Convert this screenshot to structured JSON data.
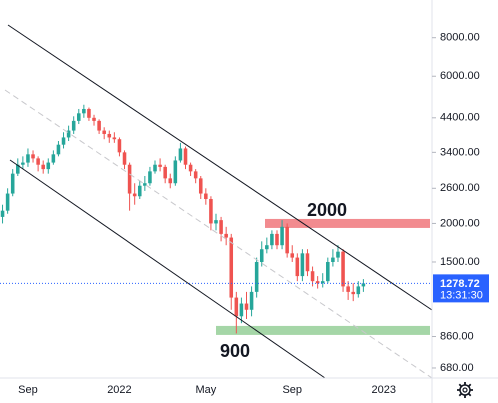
{
  "chart_data": {
    "type": "candlestick",
    "categories": [
      null,
      null,
      null,
      null,
      null,
      "Sep",
      null,
      null,
      null,
      null,
      null,
      null,
      null,
      null,
      null,
      null,
      null,
      null,
      null,
      null,
      null,
      null,
      null,
      "2022",
      null,
      null,
      null,
      null,
      null,
      null,
      null,
      null,
      null,
      null,
      null,
      null,
      null,
      null,
      null,
      null,
      "May",
      null,
      null,
      null,
      null,
      null,
      null,
      null,
      null,
      null,
      null,
      null,
      null,
      null,
      null,
      null,
      null,
      "Sep",
      null,
      null,
      null,
      null,
      null,
      null,
      null,
      null,
      null,
      null,
      null,
      null,
      null,
      null,
      null,
      null,
      null,
      "2023",
      null,
      null,
      null,
      null,
      null,
      null,
      null,
      null,
      null
    ],
    "open": [
      2100,
      2200,
      2500,
      2900,
      3100,
      3150,
      3350,
      3250,
      3100,
      3000,
      3150,
      3350,
      3600,
      3800,
      4000,
      4300,
      4550,
      4700,
      4400,
      4300,
      4000,
      3900,
      3800,
      3750,
      3400,
      3100,
      2500,
      2450,
      2650,
      2700,
      2950,
      3100,
      3050,
      2800,
      2700,
      3200,
      3500,
      3100,
      2950,
      2800,
      2500,
      2400,
      2000,
      2050,
      1850,
      1800,
      1150,
      1000,
      1100,
      1050,
      1200,
      1500,
      1650,
      1700,
      1850,
      1700,
      1950,
      1600,
      1550,
      1350,
      1600,
      1400,
      1300,
      1280,
      1300,
      1500,
      1550,
      1620,
      1250,
      1200,
      1180,
      1250,
      null,
      null,
      null,
      null,
      null,
      null,
      null,
      null,
      null,
      null,
      null,
      null,
      null
    ],
    "high": [
      2300,
      2600,
      3000,
      3250,
      3300,
      3500,
      3450,
      3300,
      3200,
      3250,
      3450,
      3700,
      3950,
      4150,
      4450,
      4700,
      4850,
      4750,
      4500,
      4350,
      4100,
      4000,
      3950,
      3800,
      3450,
      3150,
      2700,
      2750,
      2850,
      3050,
      3200,
      3250,
      3100,
      2900,
      3300,
      3650,
      3550,
      3150,
      3000,
      2850,
      2600,
      2450,
      2150,
      2100,
      1950,
      1850,
      1200,
      1150,
      1200,
      1250,
      1550,
      1750,
      1800,
      1900,
      1900,
      2050,
      2000,
      1700,
      1600,
      1650,
      1650,
      1450,
      1350,
      1380,
      1550,
      1650,
      1700,
      1650,
      1300,
      1280,
      1300,
      1320,
      null,
      null,
      null,
      null,
      null,
      null,
      null,
      null,
      null,
      null,
      null,
      null,
      null
    ],
    "low": [
      2000,
      2150,
      2450,
      2850,
      3000,
      3050,
      3150,
      2950,
      2900,
      2900,
      3100,
      3300,
      3500,
      3700,
      3900,
      4200,
      4400,
      4300,
      4150,
      3900,
      3750,
      3650,
      3650,
      3300,
      3000,
      2200,
      2300,
      2400,
      2550,
      2650,
      2900,
      2950,
      2700,
      2600,
      2650,
      3150,
      3000,
      2850,
      2700,
      2400,
      2300,
      1900,
      1900,
      1750,
      1700,
      1050,
      880,
      950,
      980,
      1000,
      1150,
      1450,
      1600,
      1650,
      1650,
      1650,
      1550,
      1500,
      1300,
      1300,
      1350,
      1250,
      1230,
      1240,
      1280,
      1450,
      1500,
      1200,
      1130,
      1120,
      1150,
      1200,
      null,
      null,
      null,
      null,
      null,
      null,
      null,
      null,
      null,
      null,
      null,
      null,
      null
    ],
    "close": [
      2200,
      2500,
      2900,
      3100,
      3150,
      3350,
      3250,
      3100,
      3000,
      3150,
      3350,
      3600,
      3800,
      4000,
      4300,
      4550,
      4700,
      4400,
      4300,
      4000,
      3900,
      3800,
      3750,
      3400,
      3100,
      2500,
      2450,
      2650,
      2700,
      2950,
      3100,
      3050,
      2800,
      2700,
      3200,
      3500,
      3100,
      2950,
      2800,
      2500,
      2400,
      2000,
      2050,
      1850,
      1800,
      1150,
      1000,
      1100,
      1050,
      1200,
      1500,
      1650,
      1700,
      1850,
      1700,
      1950,
      1600,
      1550,
      1350,
      1600,
      1400,
      1300,
      1280,
      1300,
      1500,
      1550,
      1620,
      1250,
      1200,
      1180,
      1250,
      1278.72,
      null,
      null,
      null,
      null,
      null,
      null,
      null,
      null,
      null,
      null,
      null,
      null,
      null
    ],
    "up_color": "#26a69a",
    "down_color": "#ef5350",
    "log_scale": true,
    "ylim": [
      631,
      10600
    ],
    "yticks": [
      {
        "value": 680,
        "label": "680.00"
      },
      {
        "value": 860,
        "label": "860.00"
      },
      {
        "value": 1500,
        "label": "1500.00"
      },
      {
        "value": 2000,
        "label": "2000.00"
      },
      {
        "value": 2600,
        "label": "2600.00"
      },
      {
        "value": 3400,
        "label": "3400.00"
      },
      {
        "value": 4400,
        "label": "4400.00"
      },
      {
        "value": 6000,
        "label": "6000.00"
      },
      {
        "value": 8000,
        "label": "8000.00"
      }
    ],
    "zones": [
      {
        "label": "2000",
        "value": 2000,
        "color": "#f28b8f"
      },
      {
        "label": "900",
        "value": 900,
        "color": "#a5d6a7"
      }
    ],
    "countdown": "13:31:30"
  }
}
